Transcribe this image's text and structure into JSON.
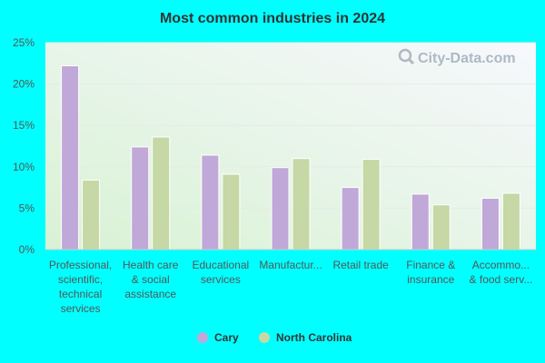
{
  "chart_data": {
    "type": "bar",
    "title": "Most common industries in 2024",
    "xlabel": "",
    "ylabel": "",
    "ylim": [
      0,
      25
    ],
    "yticks": [
      "0%",
      "5%",
      "10%",
      "15%",
      "20%",
      "25%"
    ],
    "categories": [
      [
        "Professional,",
        "scientific,",
        "technical",
        "services"
      ],
      [
        "Health care",
        "& social",
        "assistance"
      ],
      [
        "Educational",
        "services"
      ],
      [
        "Manufactur..."
      ],
      [
        "Retail trade"
      ],
      [
        "Finance &",
        "insurance"
      ],
      [
        "Accommo...",
        "& food serv..."
      ]
    ],
    "series": [
      {
        "name": "Cary",
        "color": "#c0a8d8",
        "values": [
          22.2,
          12.4,
          11.4,
          9.9,
          7.5,
          6.7,
          6.2
        ]
      },
      {
        "name": "North Carolina",
        "color": "#c5d8a5",
        "values": [
          8.4,
          13.6,
          9.1,
          11.0,
          10.9,
          5.4,
          6.8
        ]
      }
    ],
    "grid": true,
    "legend_position": "bottom"
  },
  "watermark": "City-Data.com"
}
